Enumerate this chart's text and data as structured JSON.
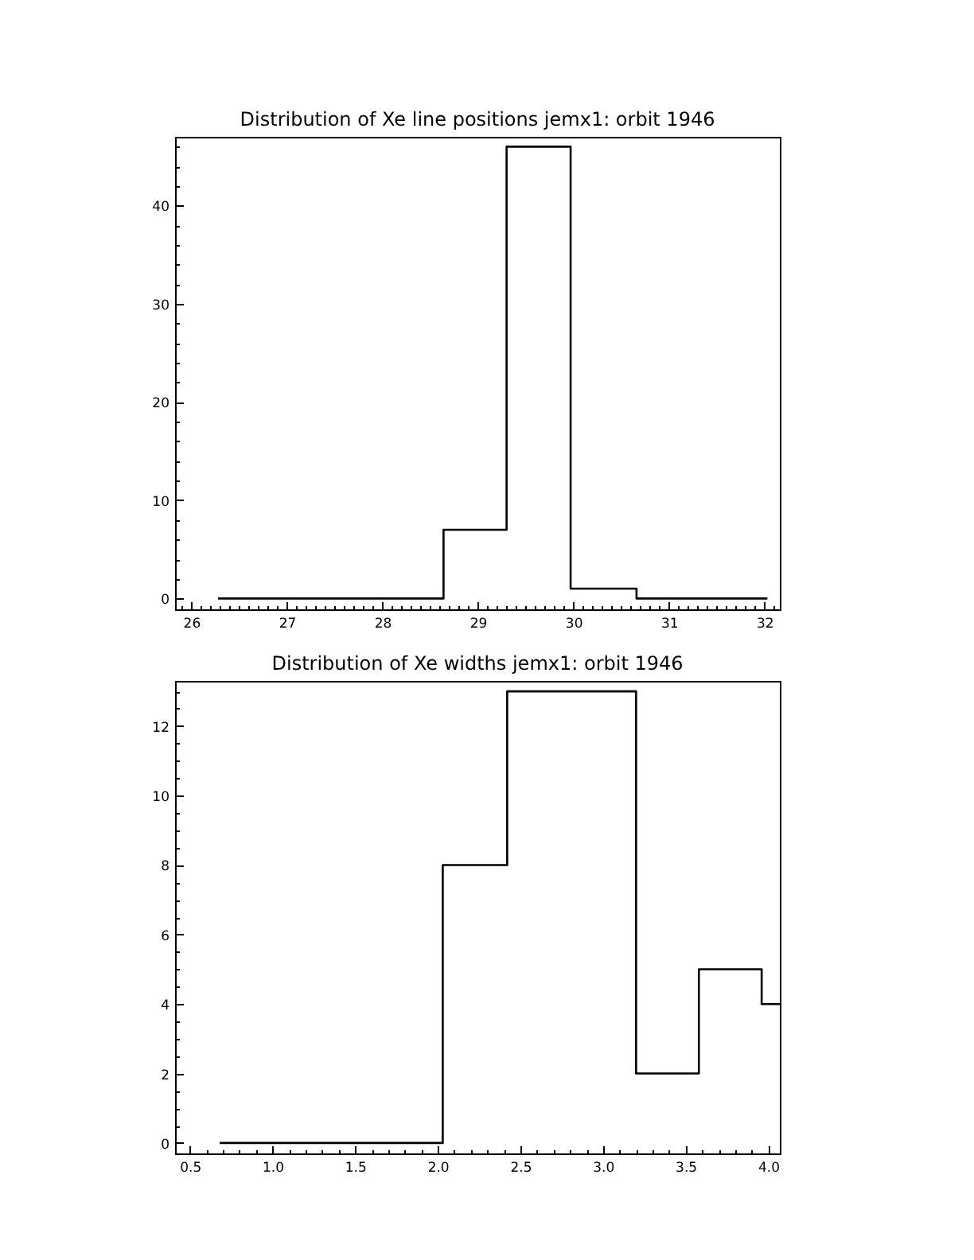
{
  "chart_data": [
    {
      "type": "histogram",
      "title": "Distribution of Xe line positions jemx1: orbit 1946",
      "bins": [
        26.28,
        28.64,
        29.3,
        29.97,
        30.66,
        32.03
      ],
      "values": [
        0,
        7,
        46,
        1,
        0
      ],
      "color": "#000000",
      "xlim": [
        25.83,
        32.16
      ],
      "ylim": [
        -1.1,
        47
      ],
      "xticks": [
        {
          "value": 25.9,
          "label": null
        },
        26,
        {
          "value": 26.1,
          "label": null
        },
        {
          "value": 26.2,
          "label": null
        },
        {
          "value": 26.3,
          "label": null
        },
        {
          "value": 26.4,
          "label": null
        },
        {
          "value": 26.5,
          "label": null
        },
        {
          "value": 26.6,
          "label": null
        },
        {
          "value": 26.7,
          "label": null
        },
        {
          "value": 26.8,
          "label": null
        },
        {
          "value": 26.9,
          "label": null
        },
        27,
        {
          "value": 27.1,
          "label": null
        },
        {
          "value": 27.2,
          "label": null
        },
        {
          "value": 27.3,
          "label": null
        },
        {
          "value": 27.4,
          "label": null
        },
        {
          "value": 27.5,
          "label": null
        },
        {
          "value": 27.6,
          "label": null
        },
        {
          "value": 27.7,
          "label": null
        },
        {
          "value": 27.8,
          "label": null
        },
        {
          "value": 27.9,
          "label": null
        },
        28,
        {
          "value": 28.1,
          "label": null
        },
        {
          "value": 28.2,
          "label": null
        },
        {
          "value": 28.3,
          "label": null
        },
        {
          "value": 28.4,
          "label": null
        },
        {
          "value": 28.5,
          "label": null
        },
        {
          "value": 28.6,
          "label": null
        },
        {
          "value": 28.7,
          "label": null
        },
        {
          "value": 28.8,
          "label": null
        },
        {
          "value": 28.9,
          "label": null
        },
        29,
        {
          "value": 29.1,
          "label": null
        },
        {
          "value": 29.2,
          "label": null
        },
        {
          "value": 29.3,
          "label": null
        },
        {
          "value": 29.4,
          "label": null
        },
        {
          "value": 29.5,
          "label": null
        },
        {
          "value": 29.6,
          "label": null
        },
        {
          "value": 29.7,
          "label": null
        },
        {
          "value": 29.8,
          "label": null
        },
        {
          "value": 29.9,
          "label": null
        },
        30,
        {
          "value": 30.1,
          "label": null
        },
        {
          "value": 30.2,
          "label": null
        },
        {
          "value": 30.3,
          "label": null
        },
        {
          "value": 30.4,
          "label": null
        },
        {
          "value": 30.5,
          "label": null
        },
        {
          "value": 30.6,
          "label": null
        },
        {
          "value": 30.7,
          "label": null
        },
        {
          "value": 30.8,
          "label": null
        },
        {
          "value": 30.9,
          "label": null
        },
        31,
        {
          "value": 31.1,
          "label": null
        },
        {
          "value": 31.2,
          "label": null
        },
        {
          "value": 31.3,
          "label": null
        },
        {
          "value": 31.4,
          "label": null
        },
        {
          "value": 31.5,
          "label": null
        },
        {
          "value": 31.6,
          "label": null
        },
        {
          "value": 31.7,
          "label": null
        },
        {
          "value": 31.8,
          "label": null
        },
        {
          "value": 31.9,
          "label": null
        },
        32,
        {
          "value": 32.1,
          "label": null
        }
      ],
      "yticks": [
        0,
        {
          "value": 2,
          "label": null
        },
        {
          "value": 4,
          "label": null
        },
        {
          "value": 6,
          "label": null
        },
        {
          "value": 8,
          "label": null
        },
        10,
        {
          "value": 12,
          "label": null
        },
        {
          "value": 14,
          "label": null
        },
        {
          "value": 16,
          "label": null
        },
        {
          "value": 18,
          "label": null
        },
        20,
        {
          "value": 22,
          "label": null
        },
        {
          "value": 24,
          "label": null
        },
        {
          "value": 26,
          "label": null
        },
        {
          "value": 28,
          "label": null
        },
        30,
        {
          "value": 32,
          "label": null
        },
        {
          "value": 34,
          "label": null
        },
        {
          "value": 36,
          "label": null
        },
        {
          "value": 38,
          "label": null
        },
        40,
        {
          "value": 42,
          "label": null
        },
        {
          "value": 44,
          "label": null
        },
        {
          "value": 46,
          "label": null
        }
      ]
    },
    {
      "type": "histogram",
      "title": "Distribution of Xe widths jemx1: orbit 1946",
      "bins": [
        0.68,
        2.03,
        2.42,
        3.2,
        3.58,
        3.96,
        4.07
      ],
      "values": [
        0,
        8,
        13,
        2,
        5,
        4
      ],
      "color": "#000000",
      "xlim": [
        0.41,
        4.07
      ],
      "ylim": [
        -0.3,
        13.3
      ],
      "xticks": [
        0.5,
        {
          "value": 0.6,
          "label": null
        },
        {
          "value": 0.7,
          "label": null
        },
        {
          "value": 0.8,
          "label": null
        },
        {
          "value": 0.9,
          "label": null
        },
        {
          "value": 1,
          "label": "1.0"
        },
        {
          "value": 1.1,
          "label": null
        },
        {
          "value": 1.2,
          "label": null
        },
        {
          "value": 1.3,
          "label": null
        },
        {
          "value": 1.4,
          "label": null
        },
        1.5,
        {
          "value": 1.6,
          "label": null
        },
        {
          "value": 1.7,
          "label": null
        },
        {
          "value": 1.8,
          "label": null
        },
        {
          "value": 1.9,
          "label": null
        },
        {
          "value": 2,
          "label": "2.0"
        },
        {
          "value": 2.1,
          "label": null
        },
        {
          "value": 2.2,
          "label": null
        },
        {
          "value": 2.3,
          "label": null
        },
        {
          "value": 2.4,
          "label": null
        },
        2.5,
        {
          "value": 2.6,
          "label": null
        },
        {
          "value": 2.7,
          "label": null
        },
        {
          "value": 2.8,
          "label": null
        },
        {
          "value": 2.9,
          "label": null
        },
        {
          "value": 3,
          "label": "3.0"
        },
        {
          "value": 3.1,
          "label": null
        },
        {
          "value": 3.2,
          "label": null
        },
        {
          "value": 3.3,
          "label": null
        },
        {
          "value": 3.4,
          "label": null
        },
        3.5,
        {
          "value": 3.6,
          "label": null
        },
        {
          "value": 3.7,
          "label": null
        },
        {
          "value": 3.8,
          "label": null
        },
        {
          "value": 3.9,
          "label": null
        },
        {
          "value": 4,
          "label": "4.0"
        }
      ],
      "yticks": [
        0,
        {
          "value": 0.5,
          "label": null
        },
        {
          "value": 1,
          "label": null
        },
        {
          "value": 1.5,
          "label": null
        },
        2,
        {
          "value": 2.5,
          "label": null
        },
        {
          "value": 3,
          "label": null
        },
        {
          "value": 3.5,
          "label": null
        },
        4,
        {
          "value": 4.5,
          "label": null
        },
        {
          "value": 5,
          "label": null
        },
        {
          "value": 5.5,
          "label": null
        },
        6,
        {
          "value": 6.5,
          "label": null
        },
        {
          "value": 7,
          "label": null
        },
        {
          "value": 7.5,
          "label": null
        },
        8,
        {
          "value": 8.5,
          "label": null
        },
        {
          "value": 9,
          "label": null
        },
        {
          "value": 9.5,
          "label": null
        },
        10,
        {
          "value": 10.5,
          "label": null
        },
        {
          "value": 11,
          "label": null
        },
        {
          "value": 11.5,
          "label": null
        },
        12,
        {
          "value": 12.5,
          "label": null
        },
        {
          "value": 13,
          "label": null
        }
      ]
    }
  ]
}
